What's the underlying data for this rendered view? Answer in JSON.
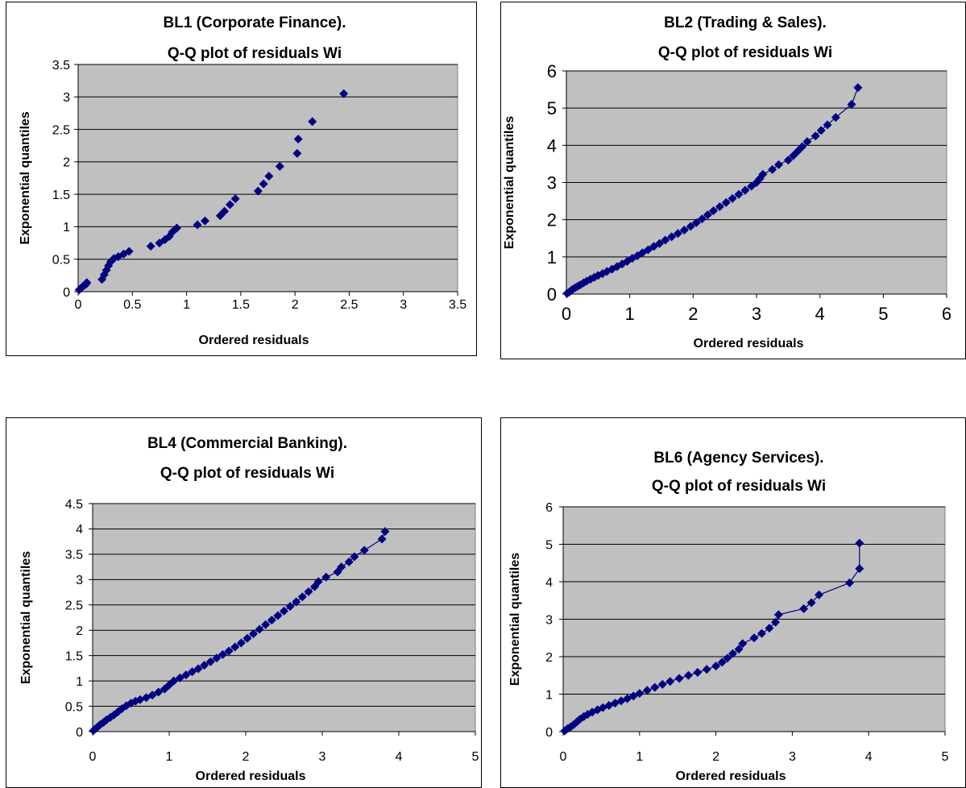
{
  "colors": {
    "plot_background": "#c0c0c0",
    "gridline": "#000000",
    "marker": "#000080",
    "line": "#000080"
  },
  "chart_data": [
    {
      "id": "bl1",
      "type": "scatter",
      "title": [
        "BL1 (Corporate Finance).",
        "Q-Q plot of residuals Wi"
      ],
      "xlabel": "Ordered residuals",
      "ylabel": "Exponential quantiles",
      "xlim": [
        0,
        3.5
      ],
      "ylim": [
        0,
        3.5
      ],
      "xticks": [
        "0",
        "0.5",
        "1",
        "1.5",
        "2",
        "2.5",
        "3",
        "3.5"
      ],
      "yticks": [
        "0",
        "0.5",
        "1",
        "1.5",
        "2",
        "2.5",
        "3",
        "3.5"
      ],
      "grid": "horizontal",
      "marker": "diamond",
      "connected": false,
      "series": [
        {
          "x": [
            0.01,
            0.03,
            0.05,
            0.07,
            0.08,
            0.22,
            0.24,
            0.26,
            0.28,
            0.3,
            0.33,
            0.37,
            0.42,
            0.47,
            0.67,
            0.75,
            0.8,
            0.84,
            0.87,
            0.91,
            1.1,
            1.17,
            1.31,
            1.35,
            1.4,
            1.45,
            1.66,
            1.71,
            1.76,
            1.86,
            2.02,
            2.03,
            2.16,
            2.45
          ],
          "y": [
            0.03,
            0.06,
            0.09,
            0.11,
            0.14,
            0.19,
            0.26,
            0.33,
            0.4,
            0.46,
            0.51,
            0.54,
            0.58,
            0.62,
            0.7,
            0.75,
            0.8,
            0.85,
            0.92,
            0.98,
            1.03,
            1.09,
            1.17,
            1.24,
            1.34,
            1.43,
            1.55,
            1.66,
            1.78,
            1.93,
            2.13,
            2.35,
            2.62,
            3.05
          ]
        }
      ]
    },
    {
      "id": "bl2",
      "type": "scatter",
      "title": [
        "BL2 (Trading & Sales).",
        "Q-Q plot of residuals Wi"
      ],
      "xlabel": "Ordered residuals",
      "ylabel": "Exponential quantiles",
      "xlim": [
        0,
        6
      ],
      "ylim": [
        0,
        6
      ],
      "xticks": [
        "0",
        "1",
        "2",
        "3",
        "4",
        "5",
        "6"
      ],
      "yticks": [
        "0",
        "1",
        "2",
        "3",
        "4",
        "5",
        "6"
      ],
      "grid": "horizontal",
      "marker": "diamond",
      "connected": true,
      "series": [
        {
          "x": [
            0.01,
            0.04,
            0.07,
            0.1,
            0.14,
            0.18,
            0.22,
            0.27,
            0.32,
            0.38,
            0.44,
            0.5,
            0.57,
            0.64,
            0.72,
            0.8,
            0.88,
            0.96,
            1.04,
            1.12,
            1.2,
            1.29,
            1.38,
            1.47,
            1.56,
            1.66,
            1.76,
            1.86,
            1.96,
            2.05,
            2.14,
            2.23,
            2.32,
            2.42,
            2.52,
            2.62,
            2.72,
            2.82,
            2.92,
            3.0,
            3.05,
            3.1,
            3.25,
            3.35,
            3.5,
            3.58,
            3.65,
            3.72,
            3.8,
            3.93,
            4.02,
            4.12,
            4.25,
            4.5,
            4.6
          ],
          "y": [
            0.02,
            0.05,
            0.09,
            0.13,
            0.17,
            0.21,
            0.25,
            0.3,
            0.35,
            0.4,
            0.45,
            0.5,
            0.55,
            0.61,
            0.67,
            0.74,
            0.81,
            0.88,
            0.96,
            1.03,
            1.11,
            1.19,
            1.28,
            1.36,
            1.45,
            1.54,
            1.63,
            1.72,
            1.82,
            1.92,
            2.02,
            2.13,
            2.24,
            2.35,
            2.46,
            2.57,
            2.68,
            2.79,
            2.9,
            3.0,
            3.1,
            3.22,
            3.35,
            3.48,
            3.6,
            3.72,
            3.84,
            3.96,
            4.1,
            4.25,
            4.4,
            4.55,
            4.75,
            5.1,
            5.55
          ]
        }
      ]
    },
    {
      "id": "bl4",
      "type": "scatter",
      "title": [
        "BL4 (Commercial Banking).",
        "Q-Q plot of residuals Wi"
      ],
      "xlabel": "Ordered residuals",
      "ylabel": "Exponential quantiles",
      "xlim": [
        0,
        5
      ],
      "ylim": [
        0,
        4.5
      ],
      "xticks": [
        "0",
        "1",
        "2",
        "3",
        "4",
        "5"
      ],
      "yticks": [
        "0",
        "0.5",
        "1",
        "1.5",
        "2",
        "2.5",
        "3",
        "3.5",
        "4",
        "4.5"
      ],
      "grid": "horizontal",
      "marker": "diamond",
      "connected": true,
      "series": [
        {
          "x": [
            0.01,
            0.04,
            0.07,
            0.1,
            0.14,
            0.18,
            0.23,
            0.28,
            0.33,
            0.38,
            0.44,
            0.5,
            0.56,
            0.62,
            0.7,
            0.78,
            0.86,
            0.94,
            1.0,
            1.06,
            1.14,
            1.22,
            1.3,
            1.38,
            1.46,
            1.54,
            1.62,
            1.7,
            1.78,
            1.86,
            1.94,
            2.02,
            2.1,
            2.18,
            2.26,
            2.34,
            2.42,
            2.5,
            2.58,
            2.66,
            2.74,
            2.82,
            2.9,
            2.95,
            3.05,
            3.2,
            3.25,
            3.35,
            3.42,
            3.55,
            3.78,
            3.82
          ],
          "y": [
            0.02,
            0.06,
            0.1,
            0.14,
            0.18,
            0.23,
            0.28,
            0.33,
            0.39,
            0.45,
            0.51,
            0.56,
            0.6,
            0.63,
            0.67,
            0.72,
            0.78,
            0.84,
            0.92,
            1.0,
            1.06,
            1.12,
            1.18,
            1.24,
            1.31,
            1.38,
            1.45,
            1.52,
            1.59,
            1.67,
            1.75,
            1.84,
            1.93,
            2.02,
            2.11,
            2.2,
            2.29,
            2.38,
            2.47,
            2.56,
            2.66,
            2.76,
            2.86,
            2.96,
            3.05,
            3.15,
            3.25,
            3.35,
            3.45,
            3.58,
            3.8,
            3.95
          ]
        }
      ]
    },
    {
      "id": "bl6",
      "type": "scatter",
      "title": [
        "BL6 (Agency Services).",
        "Q-Q plot of residuals Wi"
      ],
      "xlabel": "Ordered residuals",
      "ylabel": "Exponential quantiles",
      "xlim": [
        0,
        5
      ],
      "ylim": [
        0,
        6
      ],
      "xticks": [
        "0",
        "1",
        "2",
        "3",
        "4",
        "5"
      ],
      "yticks": [
        "0",
        "1",
        "2",
        "3",
        "4",
        "5",
        "6"
      ],
      "grid": "horizontal",
      "marker": "diamond",
      "connected": true,
      "series": [
        {
          "x": [
            0.02,
            0.06,
            0.1,
            0.14,
            0.18,
            0.22,
            0.27,
            0.32,
            0.38,
            0.45,
            0.52,
            0.6,
            0.68,
            0.76,
            0.84,
            0.92,
            1.0,
            1.1,
            1.2,
            1.3,
            1.4,
            1.52,
            1.64,
            1.76,
            1.88,
            2.0,
            2.08,
            2.15,
            2.22,
            2.3,
            2.35,
            2.5,
            2.6,
            2.7,
            2.78,
            2.82,
            3.15,
            3.25,
            3.35,
            3.75,
            3.88,
            3.88
          ],
          "y": [
            0.02,
            0.08,
            0.13,
            0.19,
            0.26,
            0.33,
            0.4,
            0.46,
            0.52,
            0.58,
            0.64,
            0.7,
            0.76,
            0.82,
            0.88,
            0.95,
            1.02,
            1.1,
            1.18,
            1.26,
            1.34,
            1.42,
            1.5,
            1.58,
            1.66,
            1.75,
            1.85,
            1.96,
            2.08,
            2.2,
            2.35,
            2.5,
            2.62,
            2.76,
            2.92,
            3.12,
            3.28,
            3.44,
            3.65,
            3.97,
            4.35,
            5.03
          ]
        }
      ]
    }
  ]
}
